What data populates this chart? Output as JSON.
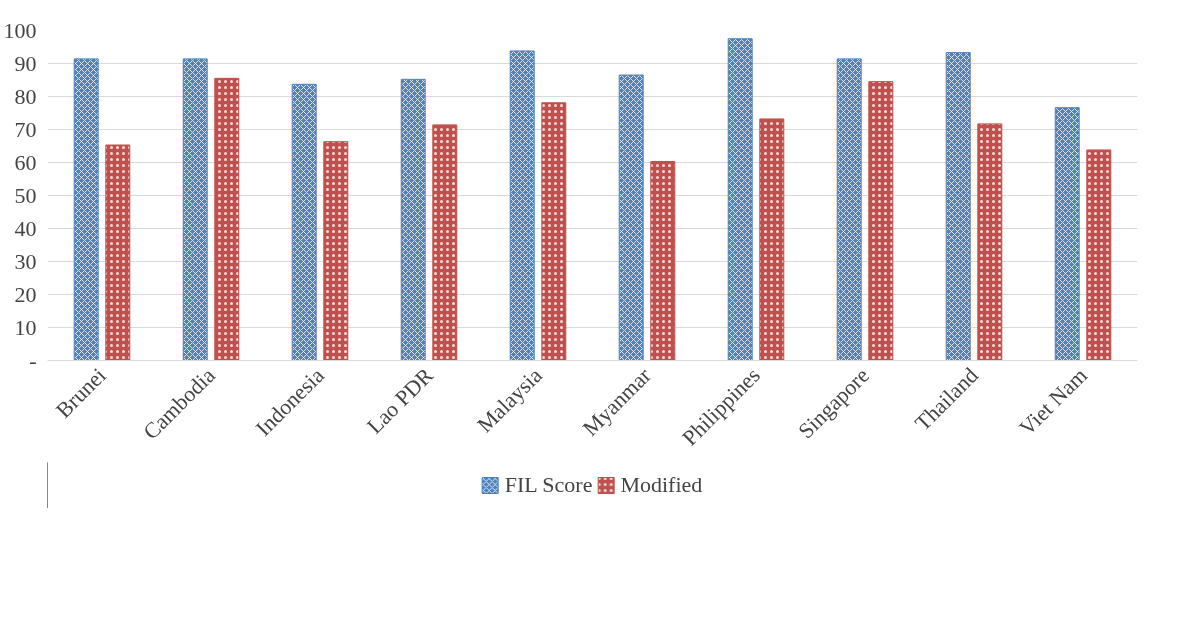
{
  "chart_data": {
    "type": "bar",
    "categories": [
      "Brunei",
      "Cambodia",
      "Indonesia",
      "Lao PDR",
      "Malaysia",
      "Myanmar",
      "Philippines",
      "Singapore",
      "Thailand",
      "Viet Nam"
    ],
    "series": [
      {
        "name": "FIL Score",
        "color": "#4f81bd",
        "values": [
          91.4,
          91.4,
          83.7,
          85.2,
          93.8,
          86.5,
          97.5,
          91.4,
          93.3,
          76.6
        ]
      },
      {
        "name": "Modified",
        "color": "#c0504d",
        "values": [
          65.3,
          85.5,
          66.3,
          71.4,
          78.1,
          60.3,
          73.2,
          84.5,
          71.7,
          63.8
        ]
      }
    ],
    "ylim": [
      0,
      100
    ],
    "yticks": [
      {
        "value": 0,
        "label": "-"
      },
      10,
      20,
      30,
      40,
      50,
      60,
      70,
      80,
      90,
      100
    ],
    "grid": "y",
    "legend": "bottom"
  }
}
